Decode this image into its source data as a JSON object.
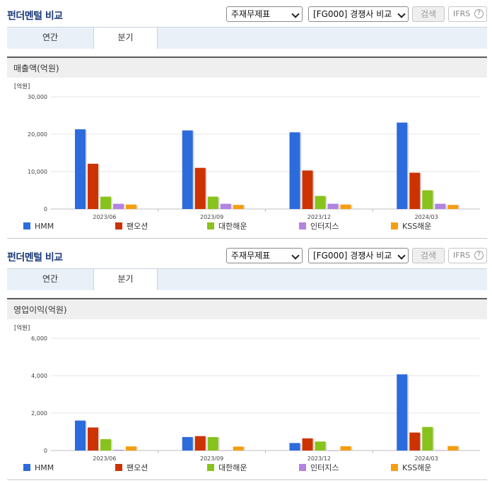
{
  "colors": {
    "HMM": "#2c6bdc",
    "팬오션": "#cc3300",
    "대한해운": "#88c21c",
    "인터지스": "#b383e0",
    "KSS해운": "#f59e10"
  },
  "panels": [
    {
      "title": "펀더멘털 비교",
      "select1": "주재무제표",
      "select2": "[FG000] 경쟁사 비교",
      "search_label": "검색",
      "ifrs_label": "IFRS",
      "help_glyph": "?",
      "tabs": [
        "연간",
        "분기"
      ],
      "active_tab": "분기",
      "subtitle": "매출액(억원)",
      "chart_data": {
        "type": "bar",
        "unit_label": "[억원]",
        "categories": [
          "2023/06",
          "2023/09",
          "2023/12",
          "2024/03"
        ],
        "ylim": [
          0,
          30000
        ],
        "yticks": [
          0,
          10000,
          20000,
          30000
        ],
        "ytick_labels": [
          "0",
          "10,000",
          "20,000",
          "30,000"
        ],
        "grid": true,
        "legend_position": "bottom",
        "series": [
          {
            "name": "HMM",
            "values": [
              21300,
              21000,
              20500,
              23100
            ]
          },
          {
            "name": "팬오션",
            "values": [
              12100,
              11000,
              10300,
              9700
            ]
          },
          {
            "name": "대한해운",
            "values": [
              3300,
              3300,
              3500,
              5000
            ]
          },
          {
            "name": "인터지스",
            "values": [
              1400,
              1400,
              1400,
              1400
            ]
          },
          {
            "name": "KSS해운",
            "values": [
              1200,
              1100,
              1200,
              1100
            ]
          }
        ]
      }
    },
    {
      "title": "펀더멘털 비교",
      "select1": "주재무제표",
      "select2": "[FG000] 경쟁사 비교",
      "search_label": "검색",
      "ifrs_label": "IFRS",
      "help_glyph": "?",
      "tabs": [
        "연간",
        "분기"
      ],
      "active_tab": "분기",
      "subtitle": "영업이익(억원)",
      "chart_data": {
        "type": "bar",
        "unit_label": "[억원]",
        "categories": [
          "2023/06",
          "2023/09",
          "2023/12",
          "2024/03"
        ],
        "ylim": [
          0,
          6000
        ],
        "yticks": [
          0,
          2000,
          4000,
          6000
        ],
        "ytick_labels": [
          "0",
          "2,000",
          "4,000",
          "6,000"
        ],
        "grid": true,
        "legend_position": "bottom",
        "series": [
          {
            "name": "HMM",
            "values": [
              1600,
              720,
              400,
              4070
            ]
          },
          {
            "name": "팬오션",
            "values": [
              1230,
              770,
              650,
              960
            ]
          },
          {
            "name": "대한해운",
            "values": [
              610,
              720,
              480,
              1260
            ]
          },
          {
            "name": "인터지스",
            "values": [
              40,
              10,
              0,
              20
            ]
          },
          {
            "name": "KSS해운",
            "values": [
              220,
              210,
              230,
              240
            ]
          }
        ]
      }
    }
  ]
}
